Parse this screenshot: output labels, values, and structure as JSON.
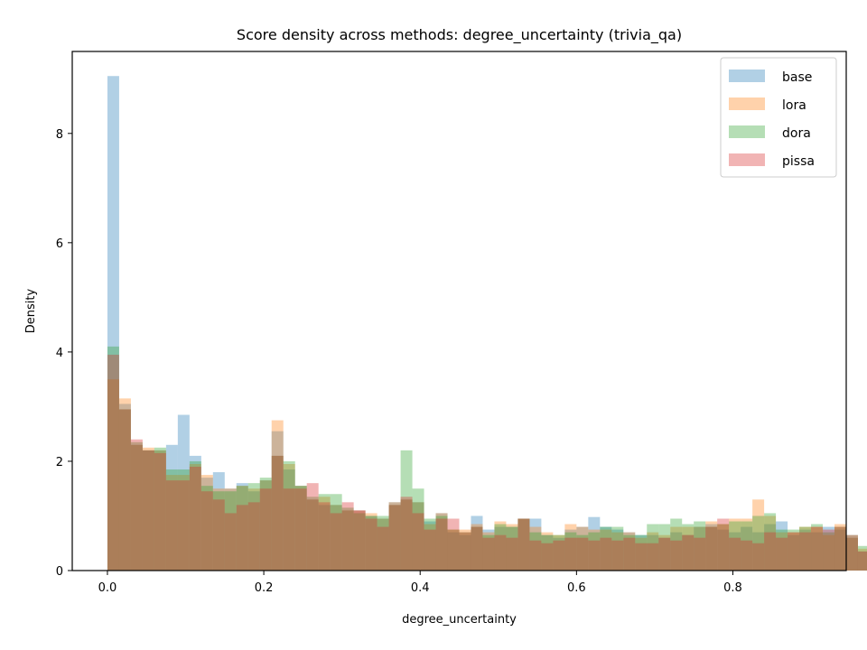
{
  "chart_data": {
    "type": "bar",
    "title": "Score density across methods: degree_uncertainty (trivia_qa)",
    "xlabel": "degree_uncertainty",
    "ylabel": "Density",
    "xlim": [
      -0.045,
      0.945
    ],
    "ylim": [
      0,
      9.5
    ],
    "xticks": [
      0.0,
      0.2,
      0.4,
      0.6,
      0.8
    ],
    "xtick_labels": [
      "0.0",
      "0.2",
      "0.4",
      "0.6",
      "0.8"
    ],
    "yticks": [
      0,
      2,
      4,
      6,
      8
    ],
    "ytick_labels": [
      "0",
      "2",
      "4",
      "6",
      "8"
    ],
    "grid": false,
    "legend_position": "top-right",
    "bin_start": 0.0,
    "bin_width": 0.015,
    "series": [
      {
        "name": "base",
        "color": "#1f77b4",
        "alpha": 0.35,
        "values": [
          9.05,
          3.05,
          2.3,
          2.2,
          2.2,
          2.3,
          2.85,
          2.1,
          1.7,
          1.8,
          1.5,
          1.6,
          1.45,
          1.65,
          2.55,
          1.85,
          1.55,
          1.3,
          1.2,
          1.2,
          1.1,
          1.1,
          1.0,
          0.95,
          1.25,
          1.3,
          1.25,
          0.9,
          1.05,
          0.7,
          0.65,
          1.0,
          0.75,
          0.8,
          0.8,
          0.95,
          0.95,
          0.65,
          0.6,
          0.75,
          0.8,
          0.98,
          0.8,
          0.75,
          0.7,
          0.65,
          0.65,
          0.6,
          0.7,
          0.65,
          0.8,
          0.85,
          0.75,
          0.7,
          0.8,
          0.7,
          0.85,
          0.9,
          0.65,
          0.75,
          0.7,
          0.8,
          0.75,
          0.6,
          0.35,
          0.18
        ]
      },
      {
        "name": "lora",
        "color": "#ff7f0e",
        "alpha": 0.35,
        "values": [
          3.5,
          3.15,
          2.3,
          2.25,
          2.2,
          1.75,
          1.75,
          1.95,
          1.75,
          1.5,
          1.5,
          1.55,
          1.5,
          1.65,
          2.75,
          1.95,
          1.55,
          1.3,
          1.35,
          1.2,
          1.1,
          1.1,
          1.05,
          0.95,
          1.25,
          1.3,
          1.25,
          0.85,
          1.05,
          0.75,
          0.75,
          0.85,
          0.7,
          0.9,
          0.85,
          0.95,
          0.8,
          0.7,
          0.65,
          0.85,
          0.8,
          0.75,
          0.75,
          0.7,
          0.7,
          0.6,
          0.7,
          0.65,
          0.8,
          0.8,
          0.8,
          0.9,
          0.85,
          0.95,
          0.95,
          1.3,
          1.0,
          0.7,
          0.7,
          0.8,
          0.8,
          0.65,
          0.85,
          0.6,
          0.4,
          0.15
        ]
      },
      {
        "name": "dora",
        "color": "#2ca02c",
        "alpha": 0.35,
        "values": [
          4.1,
          2.95,
          2.35,
          2.2,
          2.25,
          1.85,
          1.85,
          2.0,
          1.55,
          1.45,
          1.45,
          1.55,
          1.6,
          1.7,
          2.1,
          2.0,
          1.55,
          1.35,
          1.4,
          1.4,
          1.15,
          1.05,
          1.0,
          1.0,
          1.2,
          2.2,
          1.5,
          0.95,
          1.0,
          0.75,
          0.7,
          0.8,
          0.65,
          0.85,
          0.8,
          0.95,
          0.7,
          0.65,
          0.65,
          0.7,
          0.65,
          0.7,
          0.8,
          0.8,
          0.65,
          0.65,
          0.85,
          0.85,
          0.95,
          0.85,
          0.9,
          0.8,
          0.85,
          0.9,
          0.9,
          1.0,
          1.05,
          0.75,
          0.75,
          0.8,
          0.85,
          0.7,
          0.8,
          0.65,
          0.45,
          0.15
        ]
      },
      {
        "name": "pissa",
        "color": "#d62728",
        "alpha": 0.35,
        "values": [
          3.95,
          2.95,
          2.4,
          2.2,
          2.15,
          1.65,
          1.65,
          1.9,
          1.45,
          1.3,
          1.05,
          1.2,
          1.25,
          1.5,
          2.1,
          1.5,
          1.5,
          1.6,
          1.25,
          1.05,
          1.25,
          1.1,
          0.95,
          0.8,
          1.2,
          1.35,
          1.05,
          0.75,
          0.95,
          0.95,
          0.7,
          0.8,
          0.6,
          0.65,
          0.6,
          0.95,
          0.55,
          0.5,
          0.55,
          0.6,
          0.6,
          0.55,
          0.6,
          0.55,
          0.6,
          0.5,
          0.5,
          0.6,
          0.55,
          0.65,
          0.6,
          0.8,
          0.95,
          0.6,
          0.55,
          0.5,
          0.7,
          0.6,
          0.7,
          0.7,
          0.8,
          0.75,
          0.8,
          0.65,
          0.35,
          0.1
        ]
      }
    ]
  }
}
